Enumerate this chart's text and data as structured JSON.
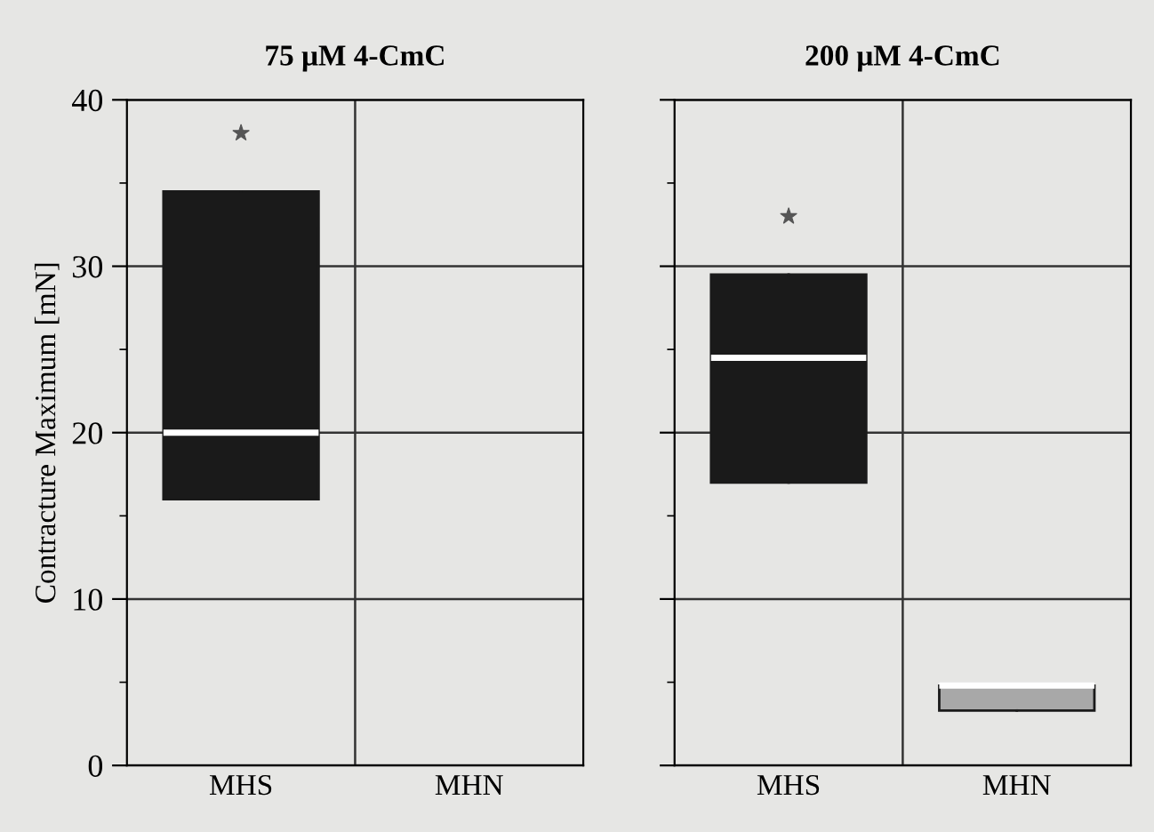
{
  "chart_data": [
    {
      "type": "box",
      "title": "75 μM 4-CmC",
      "ylabel": "Contracture Maximum [mN]",
      "categories": [
        "MHS",
        "MHN"
      ],
      "colors": [
        "#1a1a1a",
        "#a8a8a8"
      ],
      "boxes": [
        {
          "low": 16,
          "q1": 16,
          "median": 20,
          "q3": 34.5,
          "high": 34.5,
          "outliers": [
            38
          ]
        },
        null
      ],
      "ylim": [
        0,
        40
      ],
      "yticks": [
        0,
        10,
        20,
        30,
        40
      ],
      "grid": true
    },
    {
      "type": "box",
      "title": "200 μM 4-CmC",
      "categories": [
        "MHS",
        "MHN"
      ],
      "colors": [
        "#1a1a1a",
        "#a8a8a8"
      ],
      "boxes": [
        {
          "low": 17,
          "q1": 17,
          "median": 24.5,
          "q3": 29.5,
          "high": 29.5,
          "outliers": [
            33
          ]
        },
        {
          "low": 3.3,
          "q1": 3.3,
          "median": 4.8,
          "q3": 4.8,
          "high": 4.8
        }
      ],
      "ylim": [
        0,
        40
      ],
      "yticks": [
        0,
        10,
        20,
        30,
        40
      ],
      "grid": true,
      "tick_labels": "x"
    }
  ]
}
